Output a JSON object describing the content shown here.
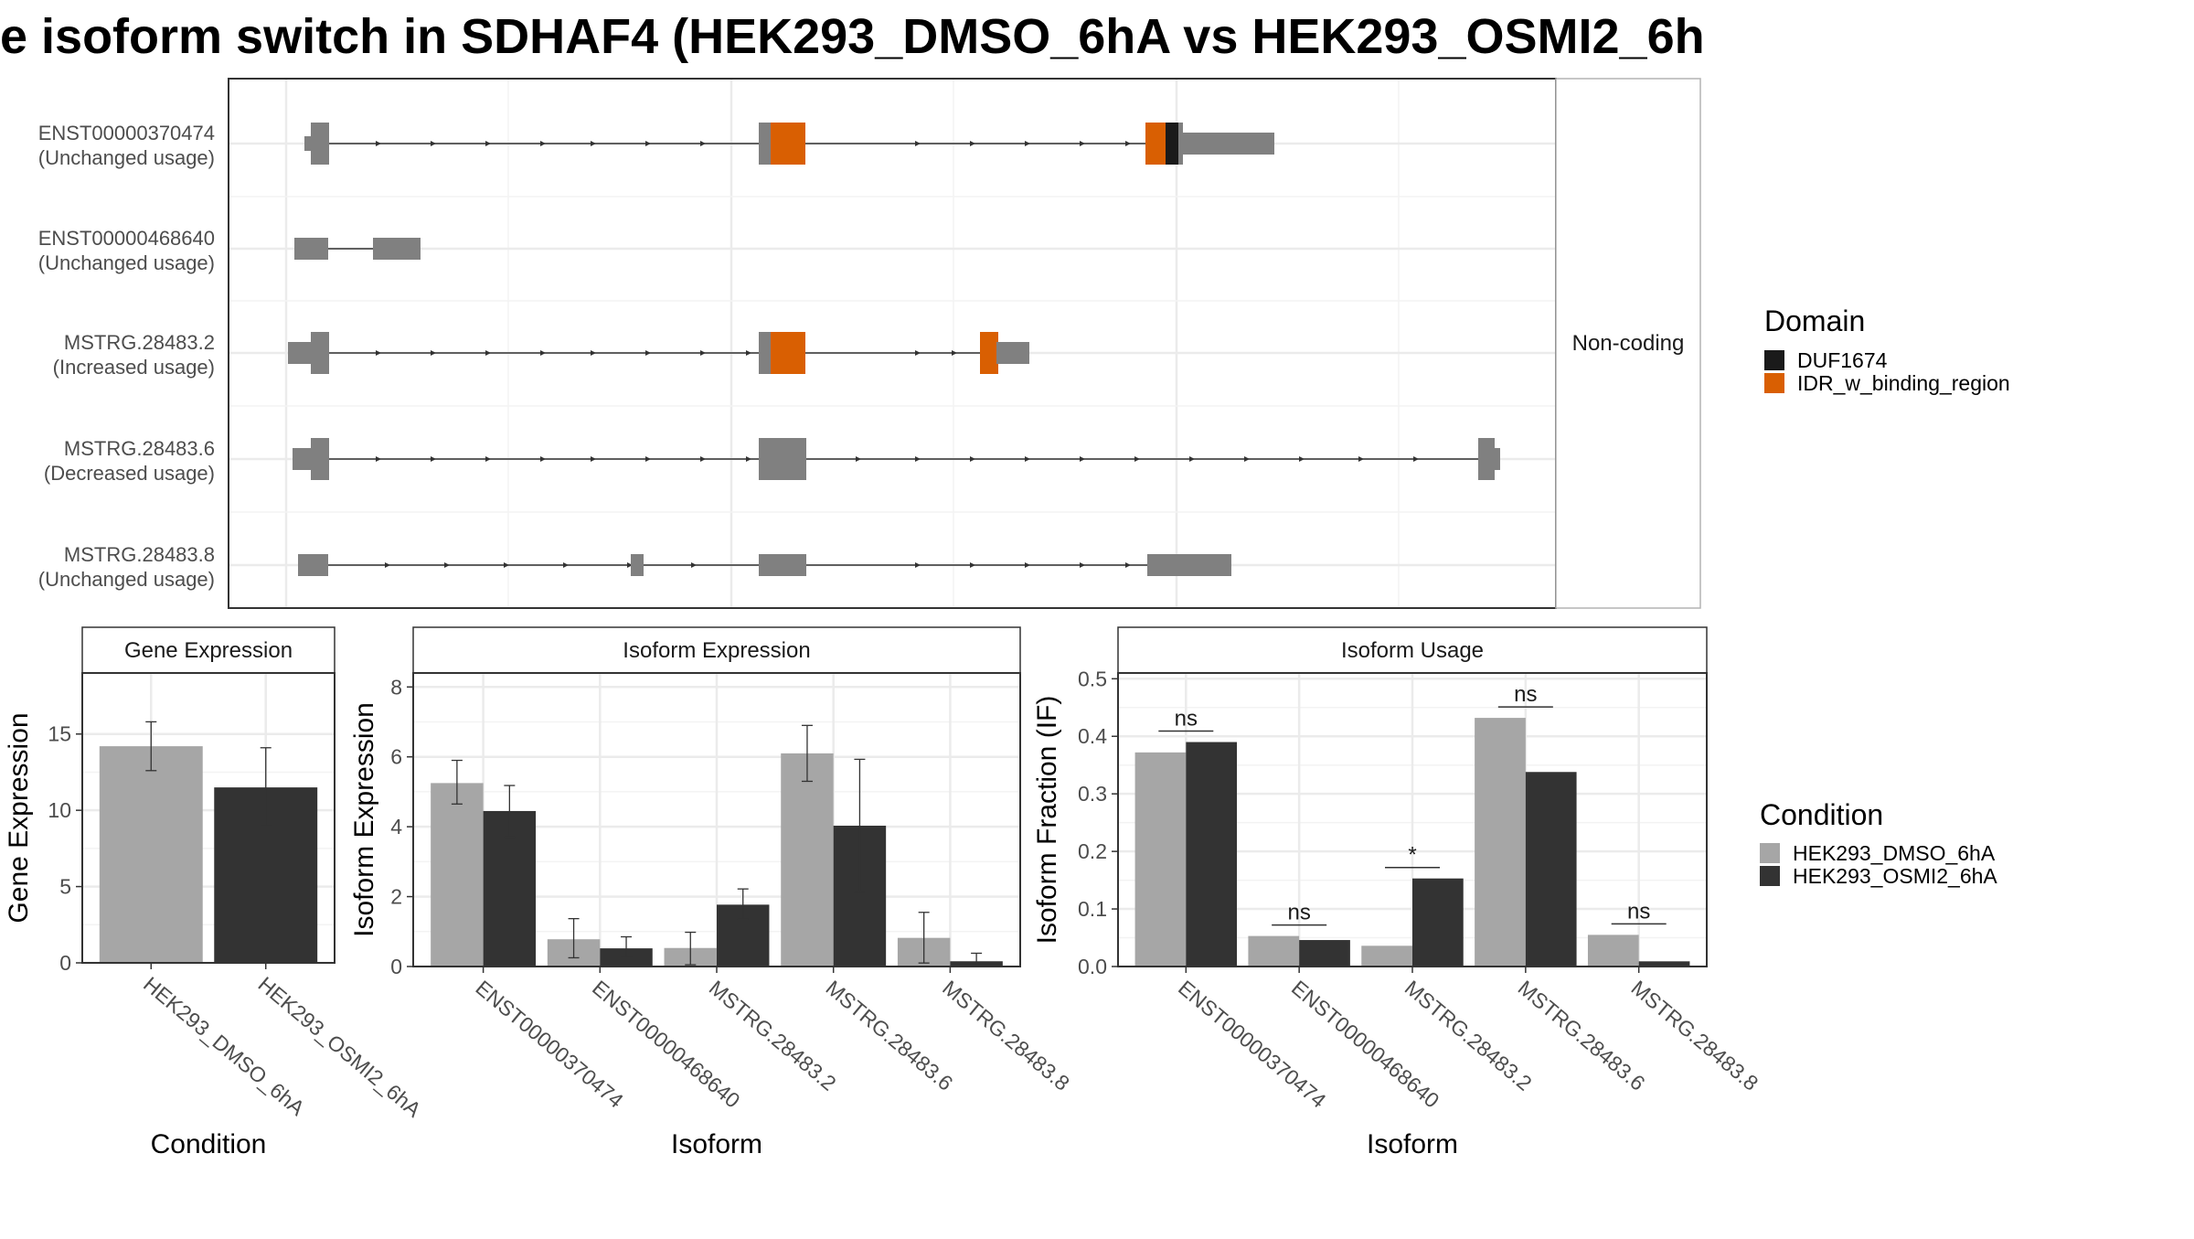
{
  "title": "e isoform switch in SDHAF4 (HEK293_DMSO_6hA vs HEK293_OSMI2_6h",
  "colors": {
    "exon": "#808080",
    "duf": "#1a1a1a",
    "idr": "#d95f02",
    "dmso": "#a6a6a6",
    "osmi": "#333333",
    "grid": "#ebebeb"
  },
  "structure": {
    "strip_label": "Non-coding",
    "transcripts": [
      {
        "name": "ENST00000370474",
        "usage": "(Unchanged usage)"
      },
      {
        "name": "ENST00000468640",
        "usage": "(Unchanged usage)"
      },
      {
        "name": "MSTRG.28483.2",
        "usage": "(Increased usage)"
      },
      {
        "name": "MSTRG.28483.6",
        "usage": "(Decreased usage)"
      },
      {
        "name": "MSTRG.28483.8",
        "usage": "(Unchanged usage)"
      }
    ]
  },
  "legend_domain": {
    "title": "Domain",
    "items": [
      {
        "label": "DUF1674",
        "color": "#1a1a1a"
      },
      {
        "label": "IDR_w_binding_region",
        "color": "#d95f02"
      }
    ]
  },
  "legend_condition": {
    "title": "Condition",
    "items": [
      {
        "label": "HEK293_DMSO_6hA",
        "color": "#a6a6a6"
      },
      {
        "label": "HEK293_OSMI2_6hA",
        "color": "#333333"
      }
    ]
  },
  "chart_data": [
    {
      "type": "bar",
      "title": "Gene Expression",
      "xlabel": "Condition",
      "ylabel": "Gene Expression",
      "ylim": [
        0,
        19
      ],
      "yticks": [
        0,
        5,
        10,
        15
      ],
      "categories": [
        "HEK293_DMSO_6hA",
        "HEK293_OSMI2_6hA"
      ],
      "values": [
        14.2,
        11.5
      ],
      "error": [
        [
          12.6,
          15.8
        ],
        [
          9.0,
          14.1
        ]
      ],
      "colors": [
        "#a6a6a6",
        "#333333"
      ]
    },
    {
      "type": "bar",
      "title": "Isoform Expression",
      "xlabel": "Isoform",
      "ylabel": "Isoform Expression",
      "ylim": [
        0,
        8.4
      ],
      "yticks": [
        0,
        2,
        4,
        6,
        8
      ],
      "categories": [
        "ENST00000370474",
        "ENST00000468640",
        "MSTRG.28483.2",
        "MSTRG.28483.6",
        "MSTRG.28483.8"
      ],
      "series": [
        {
          "name": "HEK293_DMSO_6hA",
          "values": [
            5.25,
            0.78,
            0.53,
            6.1,
            0.82
          ],
          "error": [
            [
              4.65,
              5.9
            ],
            [
              0.25,
              1.37
            ],
            [
              0.05,
              0.98
            ],
            [
              5.3,
              6.9
            ],
            [
              0.1,
              1.55
            ]
          ]
        },
        {
          "name": "HEK293_OSMI2_6hA",
          "values": [
            4.45,
            0.52,
            1.77,
            4.03,
            0.15
          ],
          "error": [
            [
              3.7,
              5.18
            ],
            [
              0.28,
              0.85
            ],
            [
              1.35,
              2.22
            ],
            [
              2.13,
              5.93
            ],
            [
              0.0,
              0.38
            ]
          ]
        }
      ]
    },
    {
      "type": "bar",
      "title": "Isoform Usage",
      "xlabel": "Isoform",
      "ylabel": "Isoform Fraction (IF)",
      "ylim": [
        0,
        0.51
      ],
      "yticks": [
        0.0,
        0.1,
        0.2,
        0.3,
        0.4,
        0.5
      ],
      "yticklabels": [
        "0.0",
        "0.1",
        "0.2",
        "0.3",
        "0.4",
        "0.5"
      ],
      "categories": [
        "ENST00000370474",
        "ENST00000468640",
        "MSTRG.28483.2",
        "MSTRG.28483.6",
        "MSTRG.28483.8"
      ],
      "series": [
        {
          "name": "HEK293_DMSO_6hA",
          "values": [
            0.372,
            0.053,
            0.036,
            0.432,
            0.055
          ]
        },
        {
          "name": "HEK293_OSMI2_6hA",
          "values": [
            0.39,
            0.046,
            0.153,
            0.338,
            0.009
          ]
        }
      ],
      "significance": [
        "ns",
        "ns",
        "*",
        "ns",
        "ns"
      ]
    }
  ]
}
